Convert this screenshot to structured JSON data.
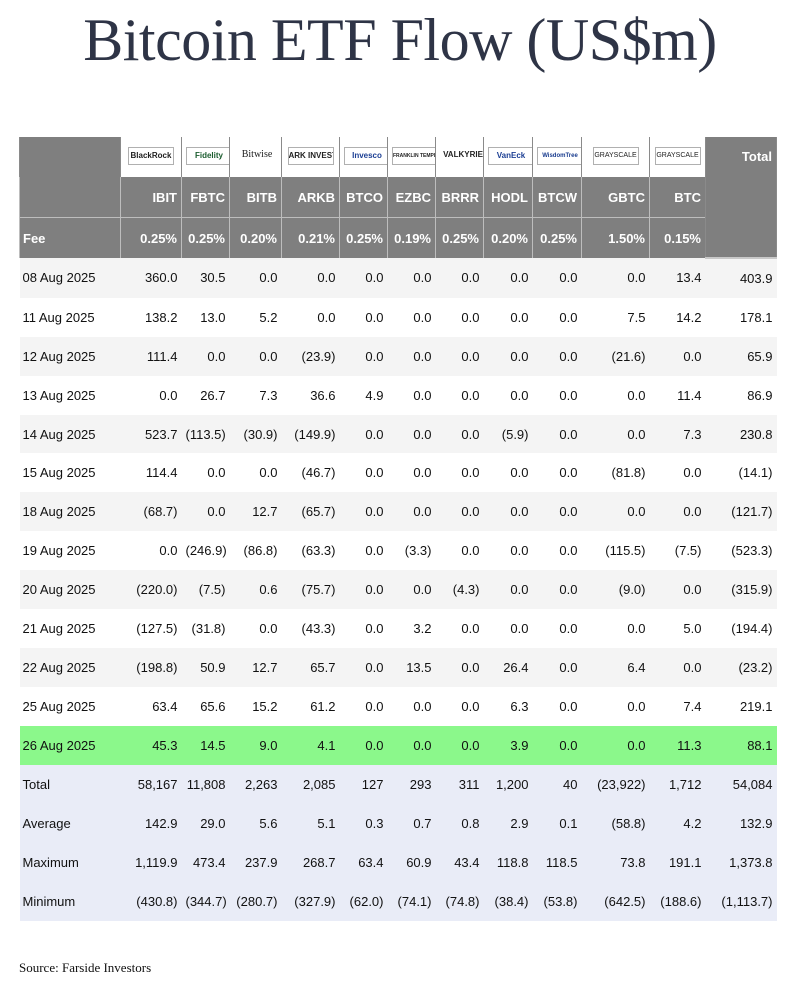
{
  "title": "Bitcoin ETF Flow (US$m)",
  "logos": [
    "BlackRock",
    "Fidelity",
    "Bitwise",
    "ARK INVEST",
    "Invesco",
    "FRANKLIN TEMPLETON",
    "VALKYRIE",
    "VanEck",
    "WisdomTree",
    "GRAYSCALE",
    "GRAYSCALE"
  ],
  "header": {
    "total_label": "Total",
    "tickers": [
      "IBIT",
      "FBTC",
      "BITB",
      "ARKB",
      "BTCO",
      "EZBC",
      "BRRR",
      "HODL",
      "BTCW",
      "GBTC",
      "BTC"
    ],
    "fee_label": "Fee",
    "fees": [
      "0.25%",
      "0.25%",
      "0.20%",
      "0.21%",
      "0.25%",
      "0.19%",
      "0.25%",
      "0.20%",
      "0.25%",
      "1.50%",
      "0.15%"
    ]
  },
  "rows": [
    {
      "date": "08 Aug 2025",
      "values": [
        "360.0",
        "30.5",
        "0.0",
        "0.0",
        "0.0",
        "0.0",
        "0.0",
        "0.0",
        "0.0",
        "0.0",
        "13.4",
        "403.9"
      ]
    },
    {
      "date": "11 Aug 2025",
      "values": [
        "138.2",
        "13.0",
        "5.2",
        "0.0",
        "0.0",
        "0.0",
        "0.0",
        "0.0",
        "0.0",
        "7.5",
        "14.2",
        "178.1"
      ]
    },
    {
      "date": "12 Aug 2025",
      "values": [
        "111.4",
        "0.0",
        "0.0",
        "(23.9)",
        "0.0",
        "0.0",
        "0.0",
        "0.0",
        "0.0",
        "(21.6)",
        "0.0",
        "65.9"
      ]
    },
    {
      "date": "13 Aug 2025",
      "values": [
        "0.0",
        "26.7",
        "7.3",
        "36.6",
        "4.9",
        "0.0",
        "0.0",
        "0.0",
        "0.0",
        "0.0",
        "11.4",
        "86.9"
      ]
    },
    {
      "date": "14 Aug 2025",
      "values": [
        "523.7",
        "(113.5)",
        "(30.9)",
        "(149.9)",
        "0.0",
        "0.0",
        "0.0",
        "(5.9)",
        "0.0",
        "0.0",
        "7.3",
        "230.8"
      ]
    },
    {
      "date": "15 Aug 2025",
      "values": [
        "114.4",
        "0.0",
        "0.0",
        "(46.7)",
        "0.0",
        "0.0",
        "0.0",
        "0.0",
        "0.0",
        "(81.8)",
        "0.0",
        "(14.1)"
      ]
    },
    {
      "date": "18 Aug 2025",
      "values": [
        "(68.7)",
        "0.0",
        "12.7",
        "(65.7)",
        "0.0",
        "0.0",
        "0.0",
        "0.0",
        "0.0",
        "0.0",
        "0.0",
        "(121.7)"
      ]
    },
    {
      "date": "19 Aug 2025",
      "values": [
        "0.0",
        "(246.9)",
        "(86.8)",
        "(63.3)",
        "0.0",
        "(3.3)",
        "0.0",
        "0.0",
        "0.0",
        "(115.5)",
        "(7.5)",
        "(523.3)"
      ]
    },
    {
      "date": "20 Aug 2025",
      "values": [
        "(220.0)",
        "(7.5)",
        "0.6",
        "(75.7)",
        "0.0",
        "0.0",
        "(4.3)",
        "0.0",
        "0.0",
        "(9.0)",
        "0.0",
        "(315.9)"
      ]
    },
    {
      "date": "21 Aug 2025",
      "values": [
        "(127.5)",
        "(31.8)",
        "0.0",
        "(43.3)",
        "0.0",
        "3.2",
        "0.0",
        "0.0",
        "0.0",
        "0.0",
        "5.0",
        "(194.4)"
      ]
    },
    {
      "date": "22 Aug 2025",
      "values": [
        "(198.8)",
        "50.9",
        "12.7",
        "65.7",
        "0.0",
        "13.5",
        "0.0",
        "26.4",
        "0.0",
        "6.4",
        "0.0",
        "(23.2)"
      ]
    },
    {
      "date": "25 Aug 2025",
      "values": [
        "63.4",
        "65.6",
        "15.2",
        "61.2",
        "0.0",
        "0.0",
        "0.0",
        "6.3",
        "0.0",
        "0.0",
        "7.4",
        "219.1"
      ]
    },
    {
      "date": "26 Aug 2025",
      "values": [
        "45.3",
        "14.5",
        "9.0",
        "4.1",
        "0.0",
        "0.0",
        "0.0",
        "3.9",
        "0.0",
        "0.0",
        "11.3",
        "88.1"
      ]
    }
  ],
  "highlight_color": "#8bf88b",
  "summary": [
    {
      "label": "Total",
      "values": [
        "58,167",
        "11,808",
        "2,263",
        "2,085",
        "127",
        "293",
        "311",
        "1,200",
        "40",
        "(23,922)",
        "1,712",
        "54,084"
      ]
    },
    {
      "label": "Average",
      "values": [
        "142.9",
        "29.0",
        "5.6",
        "5.1",
        "0.3",
        "0.7",
        "0.8",
        "2.9",
        "0.1",
        "(58.8)",
        "4.2",
        "132.9"
      ]
    },
    {
      "label": "Maximum",
      "values": [
        "1,119.9",
        "473.4",
        "237.9",
        "268.7",
        "63.4",
        "60.9",
        "43.4",
        "118.8",
        "118.5",
        "73.8",
        "191.1",
        "1,373.8"
      ]
    },
    {
      "label": "Minimum",
      "values": [
        "(430.8)",
        "(344.7)",
        "(280.7)",
        "(327.9)",
        "(62.0)",
        "(74.1)",
        "(74.8)",
        "(38.4)",
        "(53.8)",
        "(642.5)",
        "(188.6)",
        "(1,113.7)"
      ]
    }
  ],
  "source": "Source: Farside Investors"
}
